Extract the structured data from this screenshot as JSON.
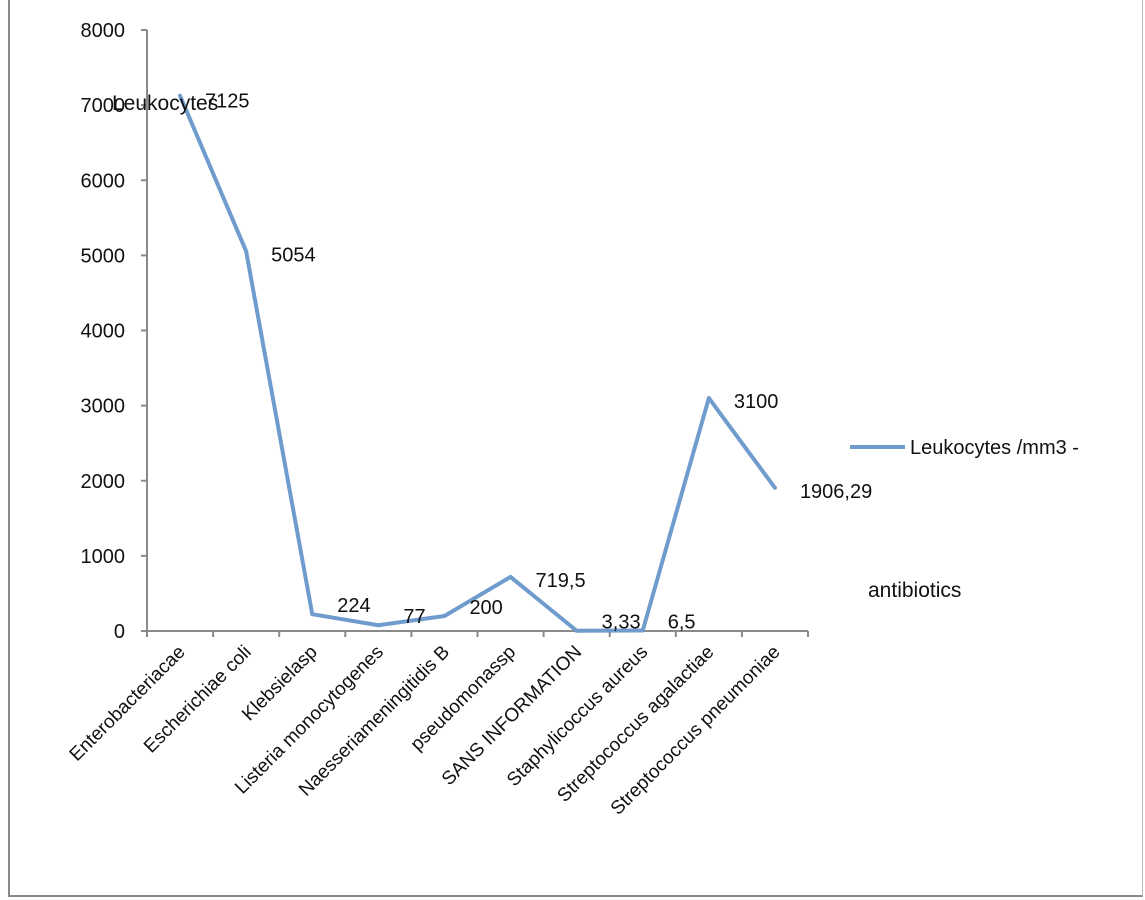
{
  "chart_data": {
    "type": "line",
    "title": "Leukocytes",
    "xlabel": "antibiotics",
    "ylabel": "",
    "categories": [
      "Enterobacteriacae",
      "Escherichiae coli",
      "Klebsielasp",
      "Listeria monocytogenes",
      "Naesseriameningitidis B",
      "pseudomonassp",
      "SANS INFORMATION",
      "Staphylicoccus aureus",
      "Streptococcus agalactiae",
      "Streptococcus pneumoniae"
    ],
    "series": [
      {
        "name": "Leukocytes /mm3 -",
        "values": [
          7125,
          5054,
          224,
          77,
          200,
          719.5,
          3.33,
          6.5,
          3100,
          1906.29
        ],
        "labels": [
          "7125",
          "5054",
          "224",
          "77",
          "200",
          "719,5",
          "3,33",
          "6,5",
          "3100",
          "1906,29"
        ],
        "color": "#6f9ccd"
      }
    ],
    "ylim": [
      0,
      8000
    ],
    "yticks": [
      "0",
      "1000",
      "2000",
      "3000",
      "4000",
      "5000",
      "6000",
      "7000",
      "8000"
    ],
    "grid": false,
    "legend": "right"
  }
}
